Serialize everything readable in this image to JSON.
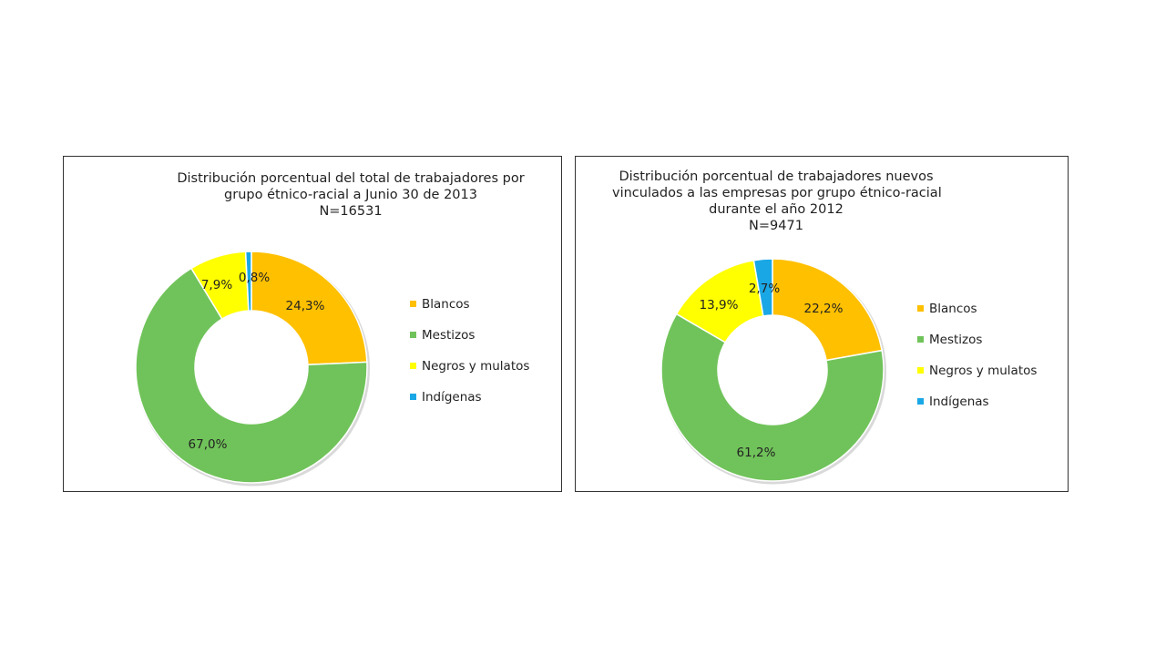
{
  "colors": {
    "Blancos": "#FFC000",
    "Mestizos": "#70C35A",
    "Negros y mulatos": "#FFFF00",
    "Indígenas": "#1AA7E6"
  },
  "chart_data": [
    {
      "type": "pie",
      "donut": true,
      "title_lines": [
        "Distribución porcentual del total de trabajadores por",
        "grupo étnico-racial a Junio 30 de 2013",
        "N=16531"
      ],
      "categories": [
        "Blancos",
        "Mestizos",
        "Negros y mulatos",
        "Indigenas"
      ],
      "values": [
        24.3,
        67.0,
        7.9,
        0.8
      ],
      "labels": [
        "24,3%",
        "67,0%",
        "7,9%",
        "0,8%"
      ],
      "legend": [
        "Blancos",
        "Mestizos",
        "Negros y mulatos",
        "Indígenas"
      ],
      "legend_position": "right"
    },
    {
      "type": "pie",
      "donut": true,
      "title_lines": [
        "Distribución porcentual de trabajadores nuevos",
        "vinculados a las empresas por grupo étnico-racial",
        "durante el año 2012",
        "N=9471"
      ],
      "categories": [
        "Blancos",
        "Mestizos",
        "Negros y mulatos",
        "Indígenas"
      ],
      "values": [
        22.2,
        61.2,
        13.9,
        2.7
      ],
      "labels": [
        "22,2%",
        "61,2%",
        "13,9%",
        "2,7%"
      ],
      "legend": [
        "Blancos",
        "Mestizos",
        "Negros y mulatos",
        "Indígenas"
      ],
      "legend_position": "right"
    }
  ]
}
